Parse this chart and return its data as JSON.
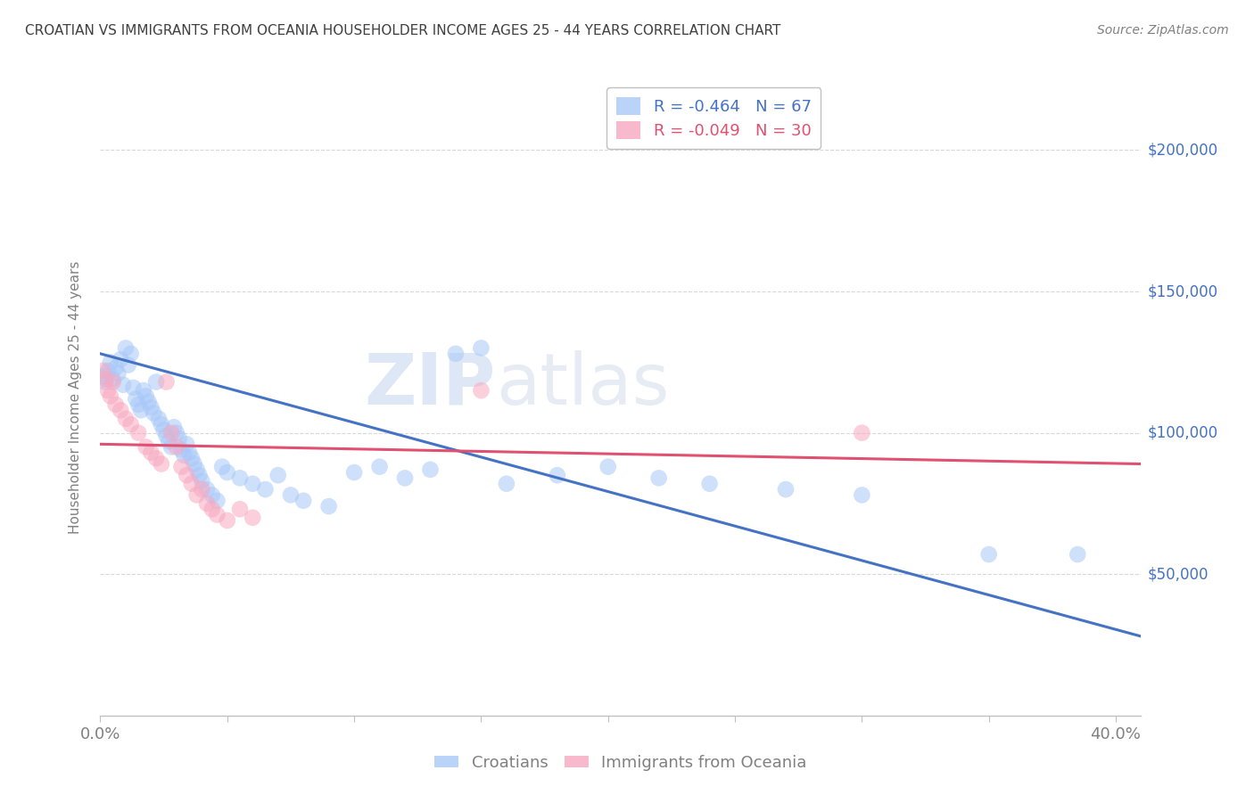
{
  "title": "CROATIAN VS IMMIGRANTS FROM OCEANIA HOUSEHOLDER INCOME AGES 25 - 44 YEARS CORRELATION CHART",
  "source": "Source: ZipAtlas.com",
  "ylabel": "Householder Income Ages 25 - 44 years",
  "ytick_labels": [
    "$50,000",
    "$100,000",
    "$150,000",
    "$200,000"
  ],
  "ytick_values": [
    50000,
    100000,
    150000,
    200000
  ],
  "ylim": [
    0,
    225000
  ],
  "xlim": [
    0.0,
    0.41
  ],
  "watermark_zip": "ZIP",
  "watermark_atlas": "atlas",
  "legend_r1": "R = -0.464",
  "legend_n1": "N = 67",
  "legend_r2": "R = -0.049",
  "legend_n2": "N = 30",
  "croatian_color": "#a8c8f8",
  "oceania_color": "#f8a8c0",
  "croatian_line_color": "#4472c4",
  "oceania_line_color": "#e05070",
  "title_color": "#404040",
  "axis_label_color": "#808080",
  "right_tick_color": "#4472c4",
  "grid_color": "#d8d8d8",
  "croatian_scatter": [
    [
      0.001,
      120000
    ],
    [
      0.002,
      118000
    ],
    [
      0.003,
      122000
    ],
    [
      0.004,
      125000
    ],
    [
      0.005,
      119000
    ],
    [
      0.006,
      123000
    ],
    [
      0.007,
      121000
    ],
    [
      0.008,
      126000
    ],
    [
      0.009,
      117000
    ],
    [
      0.01,
      130000
    ],
    [
      0.011,
      124000
    ],
    [
      0.012,
      128000
    ],
    [
      0.013,
      116000
    ],
    [
      0.014,
      112000
    ],
    [
      0.015,
      110000
    ],
    [
      0.016,
      108000
    ],
    [
      0.017,
      115000
    ],
    [
      0.018,
      113000
    ],
    [
      0.019,
      111000
    ],
    [
      0.02,
      109000
    ],
    [
      0.021,
      107000
    ],
    [
      0.022,
      118000
    ],
    [
      0.023,
      105000
    ],
    [
      0.024,
      103000
    ],
    [
      0.025,
      101000
    ],
    [
      0.026,
      99000
    ],
    [
      0.027,
      97000
    ],
    [
      0.028,
      95000
    ],
    [
      0.029,
      102000
    ],
    [
      0.03,
      100000
    ],
    [
      0.031,
      98000
    ],
    [
      0.032,
      94000
    ],
    [
      0.033,
      92000
    ],
    [
      0.034,
      96000
    ],
    [
      0.035,
      93000
    ],
    [
      0.036,
      91000
    ],
    [
      0.037,
      89000
    ],
    [
      0.038,
      87000
    ],
    [
      0.039,
      85000
    ],
    [
      0.04,
      83000
    ],
    [
      0.042,
      80000
    ],
    [
      0.044,
      78000
    ],
    [
      0.046,
      76000
    ],
    [
      0.048,
      88000
    ],
    [
      0.05,
      86000
    ],
    [
      0.055,
      84000
    ],
    [
      0.06,
      82000
    ],
    [
      0.065,
      80000
    ],
    [
      0.07,
      85000
    ],
    [
      0.075,
      78000
    ],
    [
      0.08,
      76000
    ],
    [
      0.09,
      74000
    ],
    [
      0.1,
      86000
    ],
    [
      0.11,
      88000
    ],
    [
      0.12,
      84000
    ],
    [
      0.13,
      87000
    ],
    [
      0.14,
      128000
    ],
    [
      0.15,
      130000
    ],
    [
      0.16,
      82000
    ],
    [
      0.18,
      85000
    ],
    [
      0.2,
      88000
    ],
    [
      0.22,
      84000
    ],
    [
      0.24,
      82000
    ],
    [
      0.27,
      80000
    ],
    [
      0.3,
      78000
    ],
    [
      0.35,
      57000
    ],
    [
      0.385,
      57000
    ]
  ],
  "oceania_scatter": [
    [
      0.001,
      122000
    ],
    [
      0.002,
      119000
    ],
    [
      0.003,
      115000
    ],
    [
      0.004,
      113000
    ],
    [
      0.005,
      118000
    ],
    [
      0.006,
      110000
    ],
    [
      0.008,
      108000
    ],
    [
      0.01,
      105000
    ],
    [
      0.012,
      103000
    ],
    [
      0.015,
      100000
    ],
    [
      0.018,
      95000
    ],
    [
      0.02,
      93000
    ],
    [
      0.022,
      91000
    ],
    [
      0.024,
      89000
    ],
    [
      0.026,
      118000
    ],
    [
      0.028,
      100000
    ],
    [
      0.03,
      95000
    ],
    [
      0.032,
      88000
    ],
    [
      0.034,
      85000
    ],
    [
      0.036,
      82000
    ],
    [
      0.038,
      78000
    ],
    [
      0.04,
      80000
    ],
    [
      0.042,
      75000
    ],
    [
      0.044,
      73000
    ],
    [
      0.046,
      71000
    ],
    [
      0.05,
      69000
    ],
    [
      0.055,
      73000
    ],
    [
      0.06,
      70000
    ],
    [
      0.15,
      115000
    ],
    [
      0.3,
      100000
    ]
  ],
  "croatian_line_x": [
    0.0,
    0.41
  ],
  "croatian_line_y": [
    128000,
    28000
  ],
  "oceania_line_x": [
    0.0,
    0.41
  ],
  "oceania_line_y": [
    96000,
    89000
  ],
  "scatter_size": 180,
  "scatter_alpha": 0.55,
  "line_width": 2.2,
  "xtick_positions": [
    0.0,
    0.05,
    0.1,
    0.15,
    0.2,
    0.25,
    0.3,
    0.35,
    0.4
  ],
  "xtick_show_labels": [
    true,
    false,
    false,
    false,
    false,
    false,
    false,
    false,
    true
  ]
}
